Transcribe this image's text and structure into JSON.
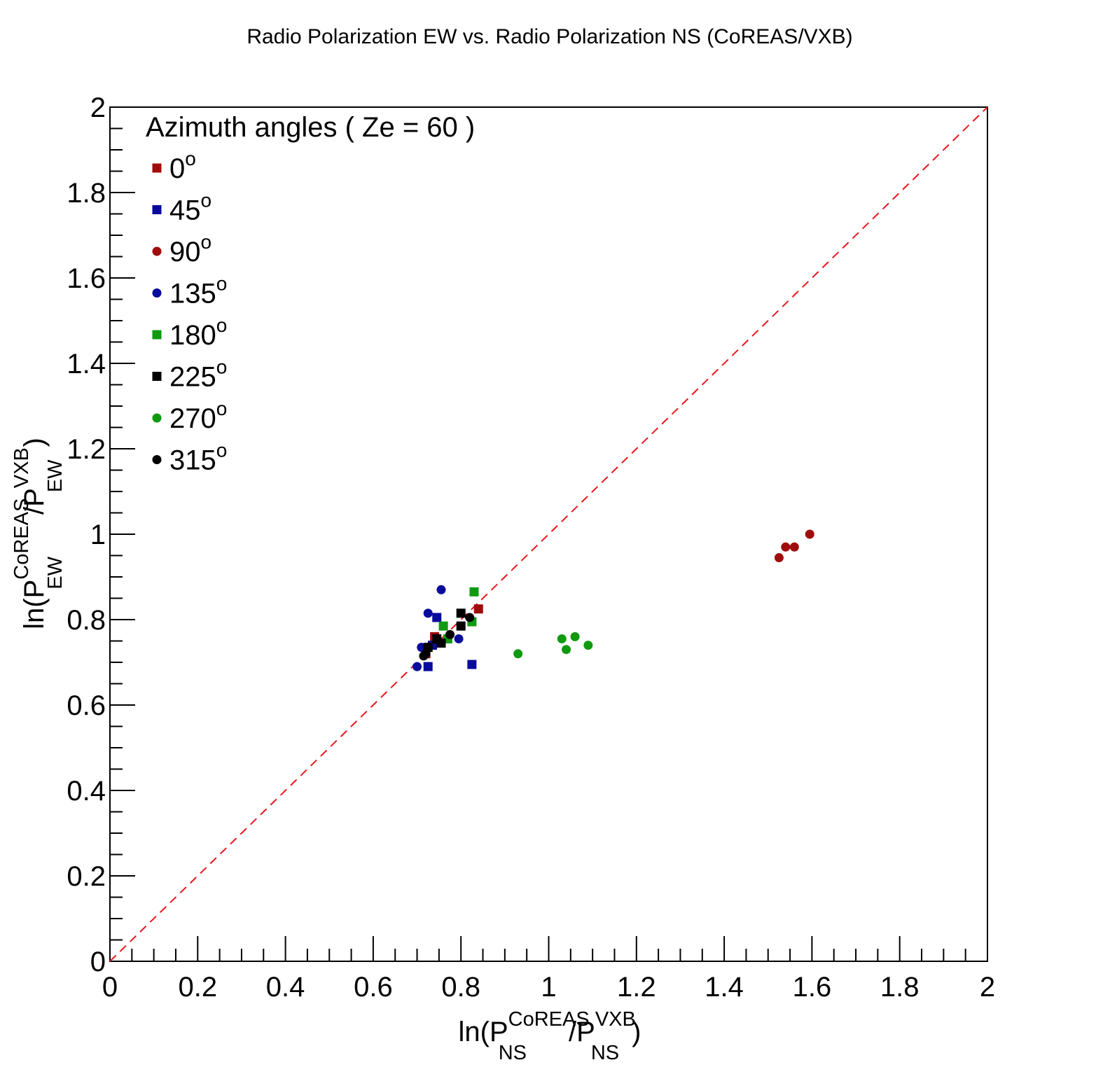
{
  "chart_data": {
    "type": "scatter",
    "title": "Radio Polarization EW vs. Radio Polarization NS (CoREAS/VXB)",
    "xlabel": {
      "base": "ln(P",
      "sup1": "CoREAS",
      "sub1": "NS",
      "mid": "/P",
      "sup2": "VXB",
      "sub2": "NS",
      "end": ")"
    },
    "ylabel": {
      "base": "ln(P",
      "sup1": "CoREAS",
      "sub1": "EW",
      "mid": "/P",
      "sup2": "VXB",
      "sub2": "EW",
      "end": ")"
    },
    "xlim": [
      0,
      2
    ],
    "ylim": [
      0,
      2
    ],
    "x_ticks": [
      "0",
      "0.2",
      "0.4",
      "0.6",
      "0.8",
      "1",
      "1.2",
      "1.4",
      "1.6",
      "1.8",
      "2"
    ],
    "y_ticks": [
      "0",
      "0.2",
      "0.4",
      "0.6",
      "0.8",
      "1",
      "1.2",
      "1.4",
      "1.6",
      "1.8",
      "2"
    ],
    "reference_line": {
      "style": "dashed",
      "color": "#e8161b",
      "from": [
        0,
        0
      ],
      "to": [
        2,
        2
      ]
    },
    "legend": {
      "title": "Azimuth angles ( Ze = 60 )",
      "placement": "top-left",
      "degree_symbol": "o"
    },
    "series": [
      {
        "name": "0",
        "marker": "square",
        "color": "#a00c0c",
        "points": [
          [
            0.72,
            0.72
          ],
          [
            0.74,
            0.76
          ],
          [
            0.84,
            0.825
          ]
        ]
      },
      {
        "name": "45",
        "marker": "square",
        "color": "#0a0a9c",
        "points": [
          [
            0.725,
            0.69
          ],
          [
            0.735,
            0.74
          ],
          [
            0.745,
            0.805
          ],
          [
            0.825,
            0.695
          ]
        ]
      },
      {
        "name": "90",
        "marker": "circle",
        "color": "#a00c0c",
        "points": [
          [
            1.525,
            0.945
          ],
          [
            1.54,
            0.97
          ],
          [
            1.56,
            0.97
          ],
          [
            1.595,
            1.0
          ]
        ]
      },
      {
        "name": "135",
        "marker": "circle",
        "color": "#0a0a9c",
        "points": [
          [
            0.7,
            0.69
          ],
          [
            0.71,
            0.735
          ],
          [
            0.725,
            0.815
          ],
          [
            0.755,
            0.87
          ],
          [
            0.795,
            0.755
          ]
        ]
      },
      {
        "name": "180",
        "marker": "square",
        "color": "#0f9a0f",
        "points": [
          [
            0.76,
            0.785
          ],
          [
            0.77,
            0.755
          ],
          [
            0.825,
            0.795
          ],
          [
            0.83,
            0.865
          ]
        ]
      },
      {
        "name": "225",
        "marker": "square",
        "color": "#000000",
        "points": [
          [
            0.725,
            0.735
          ],
          [
            0.745,
            0.755
          ],
          [
            0.755,
            0.745
          ],
          [
            0.8,
            0.815
          ],
          [
            0.8,
            0.785
          ]
        ]
      },
      {
        "name": "270",
        "marker": "circle",
        "color": "#0f9a0f",
        "points": [
          [
            0.93,
            0.72
          ],
          [
            1.03,
            0.755
          ],
          [
            1.04,
            0.73
          ],
          [
            1.06,
            0.76
          ],
          [
            1.09,
            0.74
          ]
        ]
      },
      {
        "name": "315",
        "marker": "circle",
        "color": "#000000",
        "points": [
          [
            0.715,
            0.715
          ],
          [
            0.72,
            0.72
          ],
          [
            0.775,
            0.765
          ],
          [
            0.82,
            0.805
          ]
        ]
      }
    ]
  }
}
